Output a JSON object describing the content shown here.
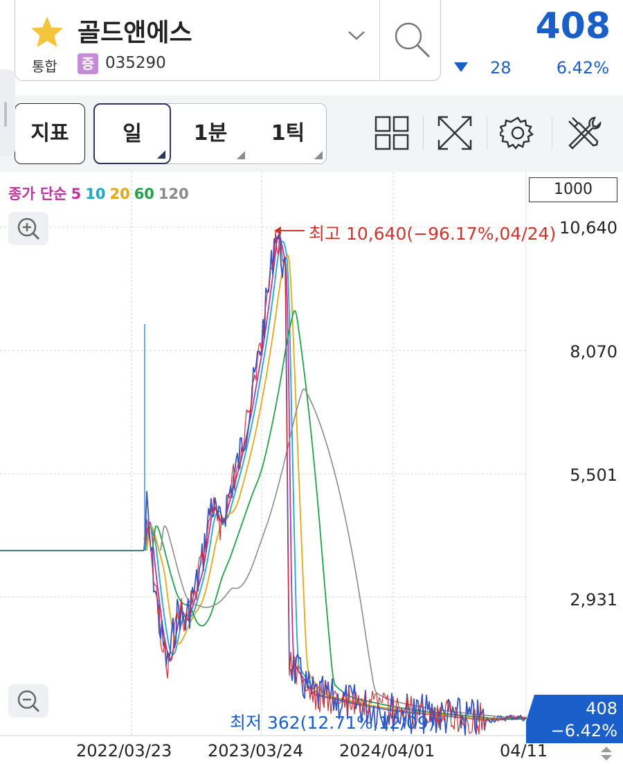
{
  "stock": {
    "name": "골드앤에스",
    "market": "통합",
    "badge": "증",
    "code": "035290",
    "price": "408",
    "change": "28",
    "change_pct": "6.42%",
    "direction": "down"
  },
  "toolbar": {
    "indicator_label": "지표",
    "periods": [
      "일",
      "1분",
      "1틱"
    ],
    "active_period": "일",
    "icons": [
      "layout-grid-icon",
      "fullscreen-icon",
      "settings-icon",
      "tools-icon"
    ]
  },
  "chart": {
    "ma_legend": {
      "prefix": "종가 단순",
      "periods": [
        {
          "label": "5",
          "color": "#c0329b"
        },
        {
          "label": "10",
          "color": "#1fa6c9"
        },
        {
          "label": "20",
          "color": "#e3a813"
        },
        {
          "label": "60",
          "color": "#22a14a"
        },
        {
          "label": "120",
          "color": "#8a8a8a"
        }
      ]
    },
    "count_input": "1000",
    "y_ticks": [
      "10,640",
      "8,070",
      "5,501",
      "2,931"
    ],
    "x_ticks": [
      "2022/03/23",
      "2023/03/24",
      "2024/04/01",
      "04/11"
    ],
    "high_annotation": "최고 10,640(−96.17%,04/24)",
    "low_annotation": "최저 362(12.71%,12/09)",
    "current_price": "408",
    "current_change": "−6.42%",
    "colors": {
      "up": "#d0332c",
      "down": "#1a5fc9",
      "accent": "#1a5fc9"
    }
  },
  "chart_data": {
    "type": "line",
    "series": [
      {
        "name": "5",
        "values": []
      },
      {
        "name": "10",
        "values": []
      },
      {
        "name": "20",
        "values": []
      },
      {
        "name": "60",
        "values": []
      },
      {
        "name": "120",
        "values": []
      }
    ],
    "y_ticks": [
      2931,
      5501,
      8070,
      10640
    ],
    "ylim": [
      1500,
      11000
    ],
    "x_ticks": [
      "2022/03/23",
      "2023/03/24",
      "2024/04/01",
      "04/11"
    ],
    "high": 10640,
    "low": 362,
    "last": 408,
    "price_path": [
      [
        "pre",
        3900
      ],
      [
        "2022/03/23",
        3900
      ],
      [
        "2022/03",
        4800
      ],
      [
        "2022/04",
        3600
      ],
      [
        "2022/06",
        2200
      ],
      [
        "2022/07",
        1500
      ],
      [
        "2022/09",
        2700
      ],
      [
        "2022/10",
        2400
      ],
      [
        "2022/12",
        3500
      ],
      [
        "2023/01",
        4900
      ],
      [
        "2023/02",
        4400
      ],
      [
        "2023/03",
        5800
      ],
      [
        "2023/03/24",
        6800
      ],
      [
        "2023/04",
        8300
      ],
      [
        "2023/05",
        9800
      ],
      [
        "2023/06",
        10640
      ],
      [
        "2023/07",
        10100
      ],
      [
        "2023/08",
        9600
      ],
      [
        "2023/08/20",
        1600
      ],
      [
        "2023/10",
        900
      ],
      [
        "2024/01",
        700
      ],
      [
        "2024/04/01",
        550
      ],
      [
        "2024/07",
        450
      ],
      [
        "2024/12",
        362
      ],
      [
        "2025/03",
        430
      ],
      [
        "04/11",
        408
      ]
    ],
    "grid": true
  }
}
